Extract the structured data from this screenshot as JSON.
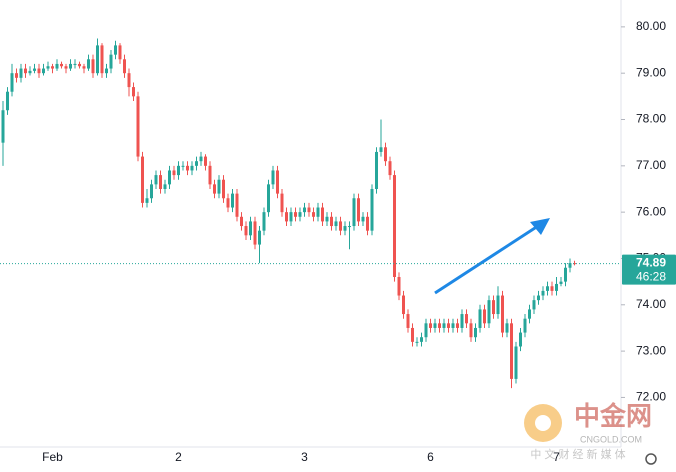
{
  "chart_data": {
    "type": "candlestick",
    "up_color": "#26a69a",
    "down_color": "#ef5350",
    "ylim": [
      70.93,
      80.58
    ],
    "yticks": [
      {
        "value": 72,
        "label": "72.00"
      },
      {
        "value": 73,
        "label": "73.00"
      },
      {
        "value": 74,
        "label": "74.00"
      },
      {
        "value": 75,
        "label": "75.00"
      },
      {
        "value": 76,
        "label": "76.00"
      },
      {
        "value": 77,
        "label": "77.00"
      },
      {
        "value": 78,
        "label": "78.00"
      },
      {
        "value": 79,
        "label": "79.00"
      },
      {
        "value": 80,
        "label": "80.00"
      }
    ],
    "grid": false,
    "last_price": 74.89,
    "countdown": "46:28",
    "watermark": {
      "brand": "中金网",
      "site": "CNGOLD.COM",
      "tagline": "中 文 财 经 新 媒 体"
    },
    "categories": [
      null,
      null,
      null,
      null,
      null,
      null,
      null,
      null,
      null,
      null,
      null,
      "Feb",
      null,
      null,
      null,
      null,
      null,
      null,
      null,
      null,
      null,
      null,
      null,
      null,
      null,
      null,
      null,
      null,
      null,
      null,
      null,
      null,
      null,
      null,
      null,
      null,
      null,
      null,
      null,
      "2",
      null,
      null,
      null,
      null,
      null,
      null,
      null,
      null,
      null,
      null,
      null,
      null,
      null,
      null,
      null,
      null,
      null,
      null,
      null,
      null,
      null,
      null,
      null,
      null,
      null,
      null,
      null,
      "3",
      null,
      null,
      null,
      null,
      null,
      null,
      null,
      null,
      null,
      null,
      null,
      null,
      null,
      null,
      null,
      null,
      null,
      null,
      null,
      null,
      null,
      null,
      null,
      null,
      null,
      null,
      null,
      "6",
      null,
      null,
      null,
      null,
      null,
      null,
      null,
      null,
      null,
      null,
      null,
      null,
      null,
      null,
      null,
      null,
      null,
      null,
      null,
      null,
      null,
      null,
      null,
      null,
      null,
      null,
      null,
      "7",
      null,
      null,
      null,
      null
    ],
    "open": [
      77.5,
      78.2,
      78.6,
      79.0,
      78.9,
      79.1,
      79.0,
      79.05,
      79.1,
      79.0,
      79.1,
      79.15,
      79.1,
      79.2,
      79.15,
      79.1,
      79.2,
      79.2,
      79.15,
      79.1,
      79.3,
      79.0,
      79.6,
      79.0,
      79.1,
      79.4,
      79.6,
      79.3,
      79.0,
      78.7,
      78.5,
      77.2,
      76.2,
      76.3,
      76.6,
      76.8,
      76.5,
      76.6,
      76.9,
      76.8,
      77.0,
      77.0,
      76.9,
      77.0,
      77.1,
      77.2,
      77.0,
      76.6,
      76.4,
      76.7,
      76.3,
      76.1,
      76.4,
      75.9,
      75.7,
      75.5,
      75.8,
      75.3,
      75.6,
      76.0,
      76.6,
      76.9,
      76.4,
      76.0,
      75.8,
      76.0,
      75.9,
      76.0,
      76.1,
      76.0,
      75.9,
      76.1,
      75.8,
      75.9,
      75.7,
      75.8,
      75.6,
      75.7,
      75.7,
      76.3,
      75.8,
      75.9,
      75.6,
      76.5,
      77.3,
      77.4,
      77.1,
      76.8,
      74.6,
      74.2,
      73.8,
      73.5,
      73.2,
      73.2,
      73.3,
      73.6,
      73.5,
      73.6,
      73.5,
      73.6,
      73.5,
      73.6,
      73.5,
      73.8,
      73.6,
      73.3,
      73.5,
      73.9,
      73.6,
      74.1,
      73.8,
      74.2,
      73.4,
      73.6,
      72.4,
      73.1,
      73.4,
      73.7,
      73.9,
      74.1,
      74.2,
      74.3,
      74.4,
      74.3,
      74.45,
      74.5,
      74.8,
      74.9
    ],
    "high": [
      78.4,
      78.7,
      79.2,
      79.1,
      79.2,
      79.2,
      79.15,
      79.2,
      79.2,
      79.2,
      79.25,
      79.2,
      79.3,
      79.25,
      79.2,
      79.3,
      79.3,
      79.25,
      79.2,
      79.4,
      79.4,
      79.75,
      79.65,
      79.2,
      79.5,
      79.7,
      79.65,
      79.4,
      79.1,
      78.8,
      78.6,
      77.3,
      76.5,
      76.7,
      76.9,
      76.9,
      76.7,
      77.0,
      77.0,
      77.1,
      77.1,
      77.1,
      77.1,
      77.2,
      77.3,
      77.25,
      77.1,
      76.7,
      76.8,
      76.8,
      76.4,
      76.5,
      76.5,
      76.0,
      75.8,
      75.9,
      75.9,
      75.7,
      76.1,
      76.7,
      77.0,
      77.0,
      76.5,
      76.1,
      76.1,
      76.1,
      76.1,
      76.2,
      76.2,
      76.1,
      76.2,
      76.2,
      76.0,
      76.0,
      75.9,
      75.9,
      75.8,
      75.8,
      76.4,
      76.4,
      76.0,
      76.0,
      76.6,
      77.4,
      78.0,
      77.5,
      77.2,
      76.9,
      74.7,
      74.3,
      73.9,
      73.6,
      73.3,
      73.4,
      73.7,
      73.7,
      73.7,
      73.7,
      73.7,
      73.7,
      73.7,
      73.7,
      73.9,
      73.9,
      73.7,
      73.6,
      74.0,
      74.0,
      74.2,
      74.2,
      74.4,
      74.3,
      73.7,
      73.7,
      73.2,
      73.5,
      73.8,
      74.0,
      74.2,
      74.3,
      74.4,
      74.5,
      74.5,
      74.6,
      74.6,
      74.9,
      75.0,
      74.95
    ],
    "low": [
      77.0,
      78.1,
      78.5,
      78.8,
      78.8,
      78.9,
      78.95,
      79.0,
      78.9,
      78.95,
      79.05,
      79.0,
      79.05,
      79.1,
      79.0,
      79.05,
      79.1,
      79.1,
      79.0,
      79.05,
      78.9,
      78.95,
      78.9,
      78.9,
      79.0,
      79.3,
      79.2,
      78.9,
      78.5,
      78.4,
      77.1,
      76.1,
      76.1,
      76.2,
      76.5,
      76.4,
      76.4,
      76.5,
      76.7,
      76.7,
      76.9,
      76.8,
      76.8,
      76.9,
      77.0,
      76.9,
      76.5,
      76.3,
      76.3,
      76.2,
      76.0,
      76.0,
      75.8,
      75.6,
      75.4,
      75.4,
      75.2,
      74.9,
      75.5,
      75.9,
      76.5,
      76.3,
      75.9,
      75.7,
      75.7,
      75.8,
      75.8,
      75.9,
      75.9,
      75.8,
      75.8,
      75.7,
      75.7,
      75.6,
      75.6,
      75.5,
      75.5,
      75.2,
      75.6,
      75.7,
      75.7,
      75.5,
      75.5,
      76.4,
      77.2,
      77.0,
      76.7,
      74.5,
      74.1,
      73.7,
      73.4,
      73.1,
      73.1,
      73.1,
      73.2,
      73.4,
      73.4,
      73.4,
      73.4,
      73.4,
      73.4,
      73.4,
      73.4,
      73.5,
      73.2,
      73.2,
      73.4,
      73.5,
      73.5,
      73.7,
      73.7,
      73.3,
      73.3,
      72.2,
      72.3,
      73.0,
      73.3,
      73.6,
      73.8,
      74.0,
      74.1,
      74.2,
      74.2,
      74.2,
      74.4,
      74.4,
      74.7,
      74.85
    ],
    "close": [
      78.2,
      78.6,
      79.0,
      78.9,
      79.1,
      79.0,
      79.05,
      79.1,
      79.0,
      79.1,
      79.15,
      79.1,
      79.2,
      79.15,
      79.1,
      79.2,
      79.2,
      79.15,
      79.1,
      79.3,
      79.0,
      79.6,
      79.0,
      79.1,
      79.4,
      79.6,
      79.3,
      79.0,
      78.7,
      78.5,
      77.2,
      76.2,
      76.3,
      76.6,
      76.8,
      76.5,
      76.6,
      76.9,
      76.8,
      77.0,
      77.0,
      76.9,
      77.0,
      77.1,
      77.2,
      77.0,
      76.6,
      76.4,
      76.7,
      76.3,
      76.1,
      76.4,
      75.9,
      75.7,
      75.5,
      75.8,
      75.3,
      75.6,
      76.0,
      76.6,
      76.9,
      76.4,
      76.0,
      75.8,
      76.0,
      75.9,
      76.0,
      76.1,
      76.0,
      75.9,
      76.1,
      75.8,
      75.9,
      75.7,
      75.8,
      75.6,
      75.7,
      75.7,
      76.3,
      75.8,
      75.9,
      75.6,
      76.5,
      77.3,
      77.4,
      77.1,
      76.8,
      74.6,
      74.2,
      73.8,
      73.5,
      73.2,
      73.2,
      73.3,
      73.6,
      73.5,
      73.6,
      73.5,
      73.6,
      73.5,
      73.6,
      73.5,
      73.8,
      73.6,
      73.3,
      73.5,
      73.9,
      73.6,
      74.1,
      73.8,
      74.2,
      73.4,
      73.6,
      72.4,
      73.1,
      73.4,
      73.7,
      73.9,
      74.1,
      74.2,
      74.3,
      74.4,
      74.3,
      74.45,
      74.5,
      74.8,
      74.9,
      74.89
    ]
  }
}
